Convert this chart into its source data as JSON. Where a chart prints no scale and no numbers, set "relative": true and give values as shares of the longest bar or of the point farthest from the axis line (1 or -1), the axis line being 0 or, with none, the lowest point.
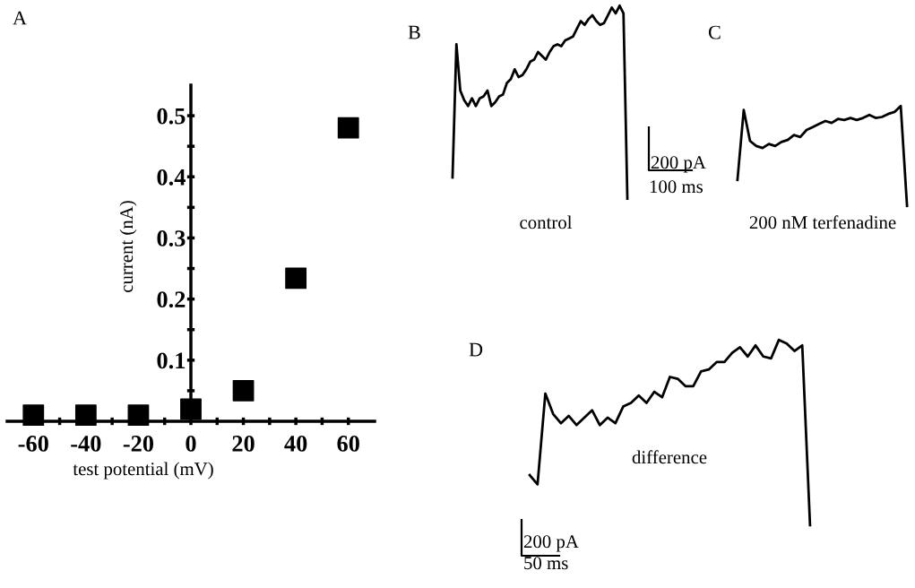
{
  "chart_data": [
    {
      "type": "scatter",
      "title": "A",
      "xlabel": "test potential (mV)",
      "ylabel": "current (nA)",
      "x": [
        -60,
        -40,
        -20,
        0,
        20,
        40,
        60
      ],
      "series": [
        {
          "color": "#000000",
          "values": [
            0.01,
            0.01,
            0.01,
            0.02,
            0.05,
            0.234,
            0.48
          ]
        }
      ],
      "marker": "square",
      "xlim": [
        -70,
        70
      ],
      "ylim": [
        0,
        0.55
      ],
      "xticks": [
        -60,
        {
          "value": -50,
          "label": null
        },
        -40,
        {
          "value": -30,
          "label": null
        },
        -20,
        {
          "value": -10,
          "label": null
        },
        0,
        {
          "value": 10,
          "label": null
        },
        20,
        {
          "value": 30,
          "label": null
        },
        40,
        {
          "value": 50,
          "label": null
        },
        60
      ],
      "yticks": [
        {
          "value": 0.05,
          "label": null
        },
        0.1,
        {
          "value": 0.15,
          "label": null
        },
        0.2,
        {
          "value": 0.25,
          "label": null
        },
        0.3,
        {
          "value": 0.35,
          "label": null
        },
        0.4,
        {
          "value": 0.45,
          "label": null
        },
        0.5
      ],
      "grid": false
    },
    {
      "type": "line",
      "title": "B",
      "relative": true,
      "annotations": [
        "control"
      ],
      "categories": [
        null,
        null,
        null,
        null,
        null,
        null,
        null,
        null,
        null,
        null,
        null,
        null,
        null,
        null,
        null,
        null,
        null,
        null,
        null,
        null,
        null,
        null,
        null,
        null,
        null,
        null,
        null,
        null,
        null,
        null,
        null,
        null,
        null,
        null,
        null,
        null,
        null,
        null,
        null,
        null,
        null,
        null,
        null,
        null,
        null,
        null
      ],
      "series": [
        {
          "color": "#000000",
          "values": [
            0.11,
            0.8,
            0.56,
            0.51,
            0.48,
            0.52,
            0.48,
            0.52,
            0.53,
            0.56,
            0.48,
            0.5,
            0.53,
            0.54,
            0.6,
            0.62,
            0.67,
            0.63,
            0.64,
            0.67,
            0.71,
            0.72,
            0.76,
            0.74,
            0.72,
            0.76,
            0.79,
            0.8,
            0.79,
            0.82,
            0.83,
            0.84,
            0.88,
            0.92,
            0.9,
            0.93,
            0.95,
            0.92,
            0.9,
            0.91,
            0.95,
            0.99,
            0.96,
            1.0,
            0.96,
            0
          ]
        }
      ],
      "line_style": "solid",
      "marker": "none"
    },
    {
      "type": "line",
      "title": "C",
      "relative": true,
      "annotations": [
        "200 pA",
        "100 ms",
        "200 nM terfenadine"
      ],
      "categories": [
        null,
        null,
        null,
        null,
        null,
        null,
        null,
        null,
        null,
        null,
        null,
        null,
        null,
        null,
        null,
        null,
        null,
        null,
        null,
        null,
        null,
        null,
        null,
        null,
        null,
        null,
        null,
        null
      ],
      "series": [
        {
          "color": "#000000",
          "values": [
            0.26,
            0.96,
            0.65,
            0.6,
            0.58,
            0.62,
            0.6,
            0.64,
            0.66,
            0.71,
            0.69,
            0.76,
            0.79,
            0.82,
            0.85,
            0.83,
            0.87,
            0.86,
            0.88,
            0.86,
            0.88,
            0.91,
            0.88,
            0.89,
            0.92,
            0.94,
            1.0,
            0
          ]
        }
      ],
      "line_style": "solid",
      "marker": "none"
    },
    {
      "type": "line",
      "title": "D",
      "relative": true,
      "annotations": [
        "difference",
        "200 pA",
        "50 ms"
      ],
      "categories": [
        null,
        null,
        null,
        null,
        null,
        null,
        null,
        null,
        null,
        null,
        null,
        null,
        null,
        null,
        null,
        null,
        null,
        null,
        null,
        null,
        null,
        null,
        null,
        null,
        null,
        null,
        null,
        null,
        null,
        null,
        null,
        null,
        null,
        null,
        null,
        null,
        null
      ],
      "series": [
        {
          "color": "#000000",
          "values": [
            0.27,
            0.22,
            0.71,
            0.6,
            0.55,
            0.59,
            0.54,
            0.58,
            0.62,
            0.54,
            0.58,
            0.55,
            0.64,
            0.66,
            0.7,
            0.66,
            0.72,
            0.69,
            0.8,
            0.79,
            0.75,
            0.75,
            0.83,
            0.84,
            0.88,
            0.88,
            0.93,
            0.96,
            0.91,
            0.97,
            0.91,
            0.9,
            1.0,
            0.98,
            0.94,
            0.97,
            0
          ]
        }
      ],
      "line_style": "solid",
      "marker": "none"
    }
  ]
}
